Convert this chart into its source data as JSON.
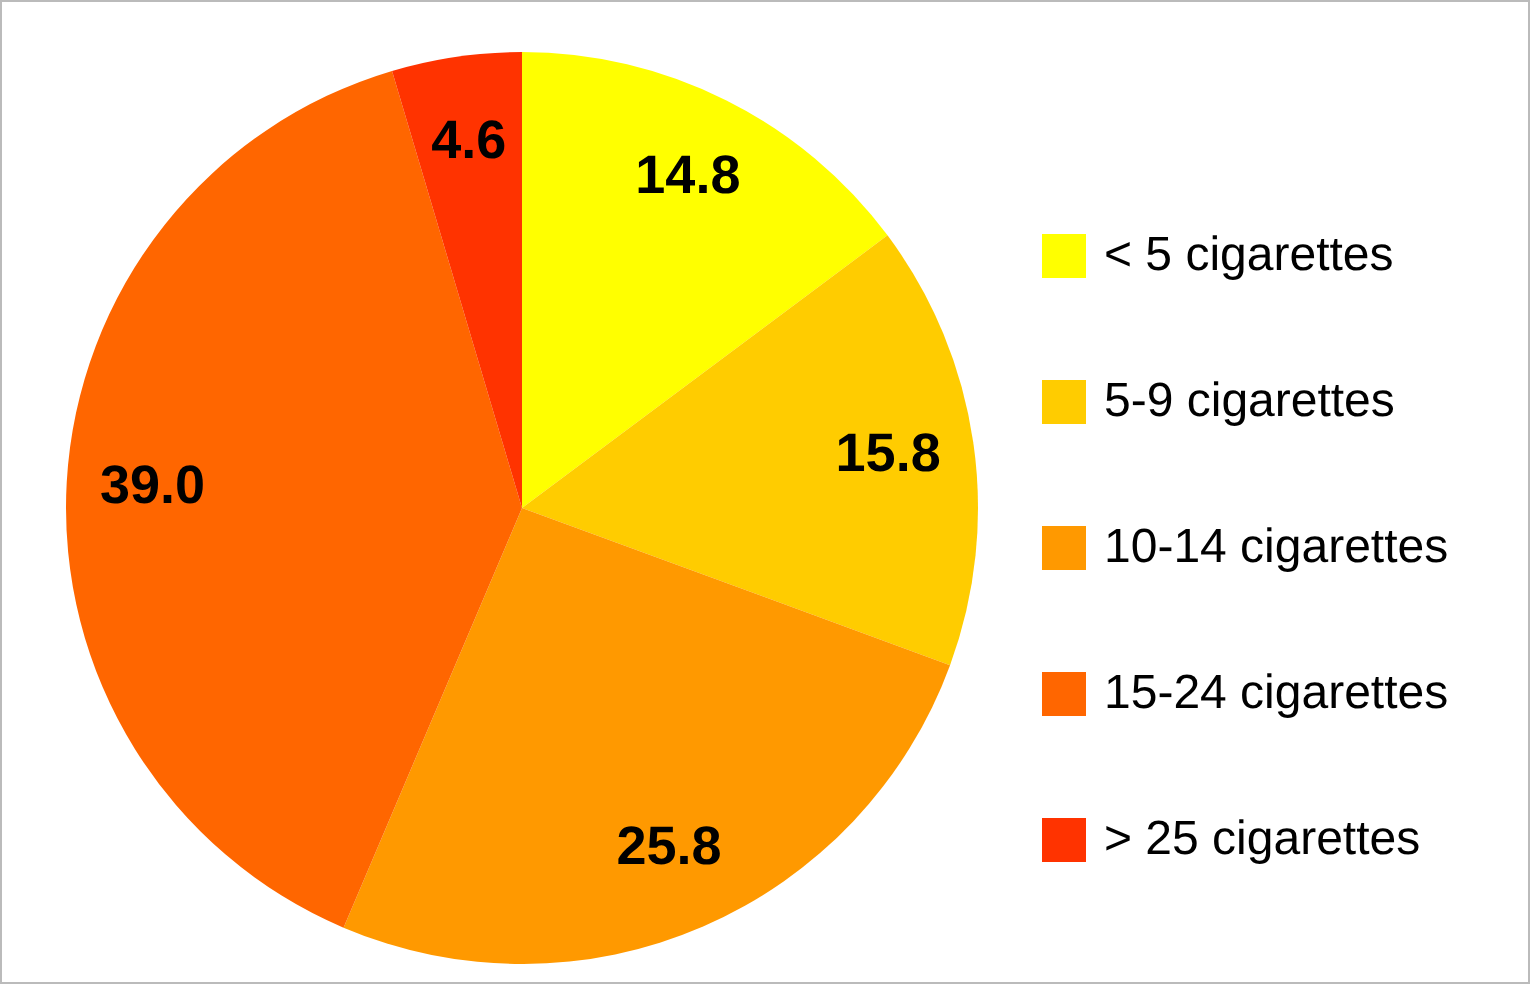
{
  "chart_data": {
    "type": "pie",
    "categories": [
      "< 5 cigarettes",
      "5-9 cigarettes",
      "10-14 cigarettes",
      "15-24 cigarettes",
      "> 25 cigarettes"
    ],
    "values": [
      14.8,
      15.8,
      25.8,
      39.0,
      4.6
    ],
    "value_labels": [
      "14.8",
      "15.8",
      "25.8",
      "39.0",
      "4.6"
    ],
    "colors": [
      "#ffff00",
      "#ffcc00",
      "#ff9900",
      "#ff6600",
      "#ff3300"
    ],
    "legend": "right"
  }
}
